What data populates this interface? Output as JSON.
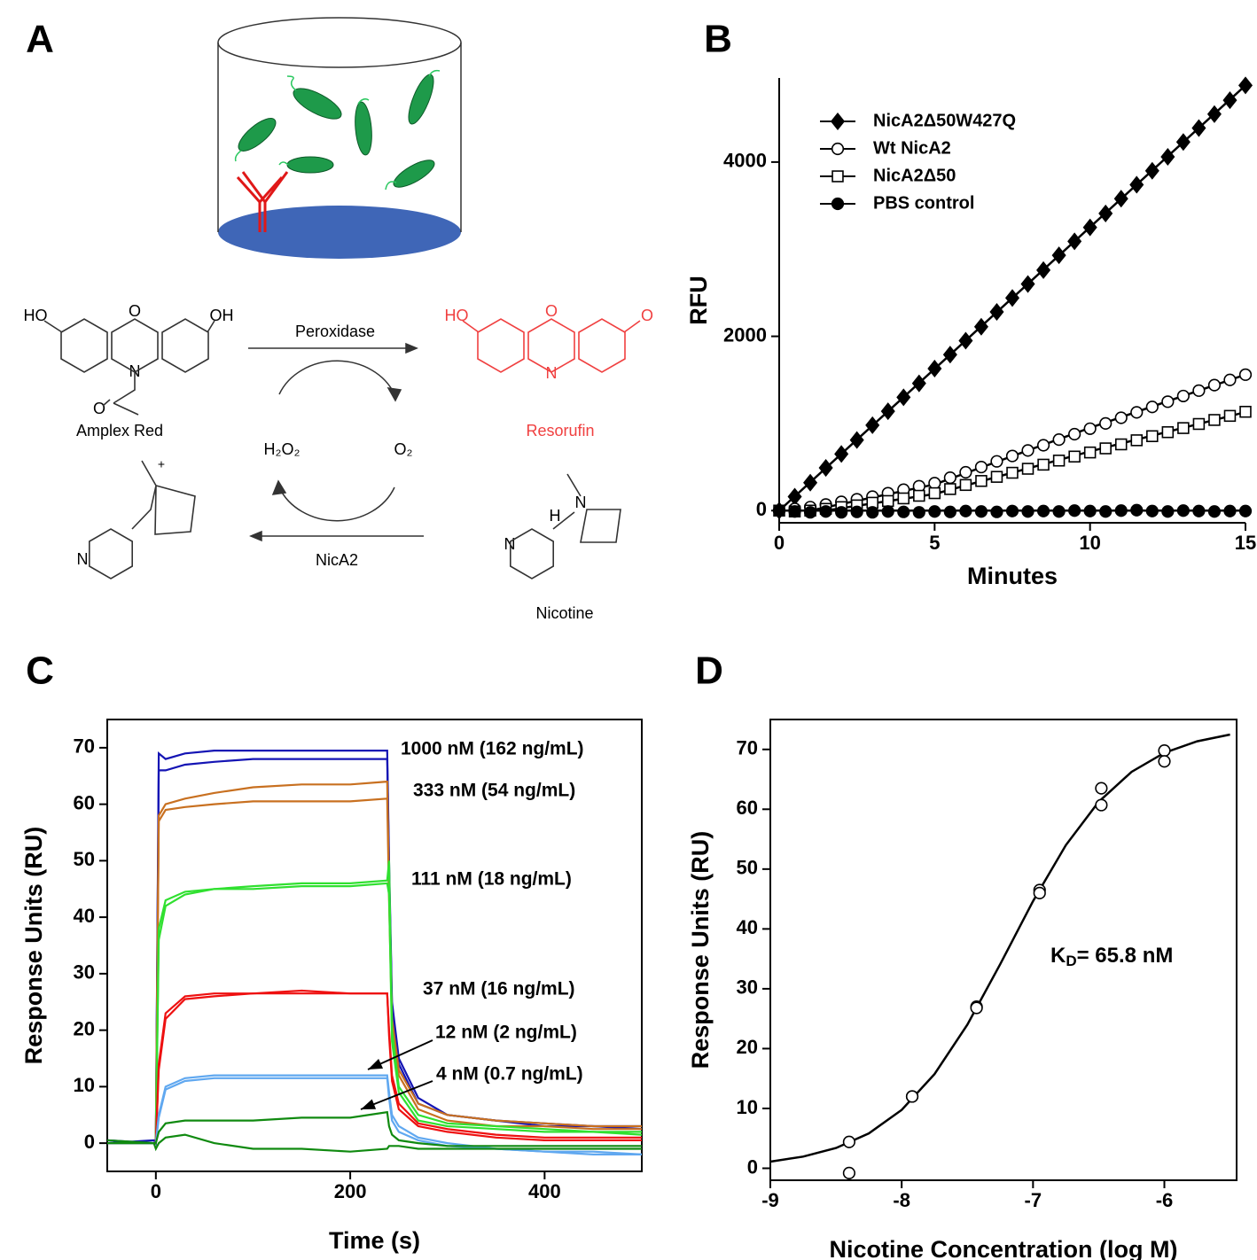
{
  "diagram": {
    "label": "A",
    "reagents": {
      "amplex_red": "Amplex Red",
      "resorufin": "Resorufin",
      "nicotine": "Nicotine"
    },
    "enzymes": {
      "peroxidase": "Peroxidase",
      "nica2": "NicA2"
    },
    "cofactors": {
      "h2o2": "H₂O₂",
      "o2": "O₂"
    },
    "atoms": [
      "HO",
      "O",
      "OH",
      "N",
      "O",
      "HO",
      "O",
      "O",
      "N",
      "N",
      "+",
      "N",
      "H",
      "N"
    ]
  },
  "chart_data": [
    {
      "type": "scatter",
      "label": "B",
      "frame": "axes",
      "xlabel": "Minutes",
      "ylabel": "RFU",
      "xlim": [
        0,
        15
      ],
      "ylim": [
        -140,
        4965
      ],
      "xticks": [
        0,
        5,
        10,
        15
      ],
      "yticks": [
        0,
        2000,
        4000
      ],
      "legend": "upper left",
      "x": [
        0,
        0.5,
        1,
        1.5,
        2,
        2.5,
        3,
        3.5,
        4,
        4.5,
        5,
        5.5,
        6,
        6.5,
        7,
        7.5,
        8,
        8.5,
        9,
        9.5,
        10,
        10.5,
        11,
        11.5,
        12,
        12.5,
        13,
        13.5,
        14,
        14.5,
        15
      ],
      "series": [
        {
          "name": "NicA2Δ50W427Q",
          "color": "#000000",
          "marker": "filled-diamond",
          "values": [
            0,
            160,
            320,
            490,
            650,
            810,
            980,
            1140,
            1300,
            1460,
            1630,
            1790,
            1950,
            2110,
            2280,
            2440,
            2600,
            2760,
            2930,
            3090,
            3250,
            3410,
            3580,
            3740,
            3900,
            4060,
            4230,
            4390,
            4550,
            4710,
            4880
          ],
          "fit": {
            "x": [
              0,
              15
            ],
            "values": [
              0,
              4880
            ]
          }
        },
        {
          "name": "Wt NicA2",
          "color": "#000000",
          "marker": "open-circle",
          "values": [
            0,
            20,
            40,
            70,
            100,
            130,
            160,
            200,
            240,
            280,
            315,
            377,
            440,
            500,
            565,
            627,
            690,
            750,
            815,
            877,
            940,
            1000,
            1065,
            1127,
            1190,
            1250,
            1315,
            1377,
            1440,
            1500,
            1560
          ],
          "fit": {
            "x": [
              1,
              5,
              10,
              15
            ],
            "values": [
              0,
              300,
              950,
              1560
            ]
          }
        },
        {
          "name": "NicA2Δ50",
          "color": "#000000",
          "marker": "open-square",
          "values": [
            0,
            -10,
            0,
            20,
            40,
            60,
            90,
            110,
            140,
            170,
            200,
            247,
            294,
            340,
            387,
            434,
            480,
            527,
            574,
            620,
            667,
            714,
            760,
            807,
            854,
            900,
            947,
            994,
            1040,
            1087,
            1134
          ],
          "fit": {
            "x": [
              1.5,
              5,
              10,
              15
            ],
            "values": [
              0,
              190,
              680,
              1130
            ]
          }
        },
        {
          "name": "PBS control",
          "color": "#000000",
          "marker": "filled-circle",
          "values": [
            0,
            -10,
            -20,
            -10,
            -20,
            -15,
            -20,
            -10,
            -15,
            -20,
            -10,
            -15,
            -5,
            -10,
            -15,
            -5,
            -10,
            -5,
            -10,
            0,
            -5,
            -10,
            0,
            5,
            -5,
            -10,
            0,
            -5,
            -10,
            -5,
            -5
          ],
          "fit": {
            "x": [
              0,
              15
            ],
            "values": [
              0,
              0
            ]
          }
        }
      ]
    },
    {
      "type": "line",
      "label": "C",
      "frame": "box",
      "xlabel": "Time (s)",
      "ylabel": "Response Units (RU)",
      "xlim": [
        -50,
        500
      ],
      "ylim": [
        -5,
        75
      ],
      "xticks": [
        0,
        200,
        400
      ],
      "yticks": [
        0,
        10,
        20,
        30,
        40,
        50,
        60,
        70
      ],
      "x": [
        -50,
        -2,
        0,
        3,
        10,
        30,
        60,
        100,
        150,
        200,
        238,
        240,
        243,
        250,
        270,
        300,
        350,
        400,
        450,
        500
      ],
      "series": [
        {
          "name": "1000 nM (162 ng/mL)",
          "color": "#1414b4",
          "replicates": [
            [
              0.5,
              0,
              0,
              69,
              68,
              69,
              69.5,
              69.5,
              69.5,
              69.5,
              69.5,
              50,
              25,
              15,
              8,
              5,
              4,
              3.5,
              3,
              3
            ],
            [
              0,
              0.5,
              0,
              66,
              66,
              67,
              67.5,
              68,
              68,
              68,
              68,
              48,
              24,
              14,
              7,
              5,
              4,
              3,
              3,
              2.5
            ]
          ]
        },
        {
          "name": "333 nM (54 ng/mL)",
          "color": "#c87020",
          "replicates": [
            [
              0,
              0,
              0,
              58,
              60,
              61,
              62,
              63,
              63.5,
              63.5,
              64,
              45,
              22,
              13,
              7,
              5,
              4,
              3.5,
              3,
              3
            ],
            [
              0,
              0,
              0,
              57,
              59,
              59.5,
              60,
              60.5,
              60.5,
              60.5,
              61,
              43,
              21,
              12,
              6,
              4,
              3,
              3,
              2.5,
              2.5
            ]
          ]
        },
        {
          "name": "111 nM (18 ng/mL)",
          "color": "#30e030",
          "replicates": [
            [
              0,
              0,
              0,
              38,
              43,
              44.5,
              45,
              45.5,
              46,
              46,
              46.5,
              50,
              20,
              10,
              5,
              3.5,
              3,
              2.5,
              2,
              2
            ],
            [
              0,
              0,
              0,
              36,
              42,
              44,
              45,
              45,
              45.5,
              45.5,
              46,
              44,
              18,
              9,
              4,
              3,
              2.5,
              2,
              2,
              1.5
            ]
          ]
        },
        {
          "name": "37 nM (16 ng/mL)",
          "color": "#ee1010",
          "replicates": [
            [
              0,
              0,
              0,
              14,
              23,
              26,
              26.5,
              26.5,
              27,
              26.5,
              26.5,
              20,
              12,
              7,
              3.5,
              2.5,
              1.5,
              1,
              1,
              1
            ],
            [
              0,
              0,
              0,
              13,
              22,
              25.5,
              26,
              26.5,
              26.5,
              26.5,
              26.5,
              19,
              11,
              6,
              3,
              2,
              1,
              0.5,
              0.5,
              0.5
            ]
          ]
        },
        {
          "name": "12 nM (2 ng/mL)",
          "color": "#60a8f0",
          "replicates": [
            [
              0,
              0,
              0,
              5,
              10,
              11.5,
              12,
              12,
              12,
              12,
              12,
              9,
              5,
              3,
              1,
              0,
              -1,
              -1.5,
              -1.5,
              -2
            ],
            [
              0,
              0,
              0,
              4.5,
              9.5,
              11,
              11.5,
              11.5,
              11.5,
              11.5,
              11.5,
              8,
              4,
              2,
              0.5,
              -0.5,
              -1,
              -1.5,
              -2,
              -2
            ]
          ]
        },
        {
          "name": "4 nM (0.7 ng/mL)",
          "color": "#108a10",
          "replicates": [
            [
              0,
              0,
              0,
              2,
              3.5,
              4,
              4,
              4,
              4.5,
              4.5,
              5.5,
              3,
              1.5,
              0.5,
              0,
              -0.5,
              -0.5,
              -0.5,
              -0.5,
              -0.5
            ],
            [
              0.5,
              0,
              -1,
              0,
              1,
              1.5,
              0,
              -1,
              -1,
              -1.5,
              -1,
              -0.5,
              -0.5,
              -0.5,
              -1,
              -1,
              -1,
              -1,
              -1,
              -1
            ]
          ]
        }
      ]
    },
    {
      "type": "scatter",
      "label": "D",
      "frame": "box",
      "xlabel": "Nicotine Concentration (log M)",
      "ylabel": "Response Units (RU)",
      "xlim": [
        -9,
        -5.45
      ],
      "ylim": [
        -2,
        75
      ],
      "xticks": [
        -9,
        -8,
        -7,
        -6
      ],
      "yticks": [
        0,
        10,
        20,
        30,
        40,
        50,
        60,
        70
      ],
      "annotation": {
        "main": "K",
        "sub": "D",
        "rest": "= 65.8 nM"
      },
      "x": [
        -8.4,
        -8.4,
        -7.92,
        -7.92,
        -7.43,
        -7.43,
        -6.95,
        -6.95,
        -6.48,
        -6.48,
        -6,
        -6
      ],
      "series": [
        {
          "color": "#000000",
          "marker": "open-circle",
          "values": [
            4.4,
            -0.8,
            12,
            12,
            27,
            26.8,
            46.5,
            46,
            63.5,
            60.7,
            69.8,
            68
          ],
          "fit": {
            "x": [
              -9,
              -8.75,
              -8.5,
              -8.25,
              -8,
              -7.75,
              -7.5,
              -7.25,
              -7,
              -6.75,
              -6.5,
              -6.25,
              -6,
              -5.75,
              -5.5
            ],
            "values": [
              1.11,
              1.95,
              3.39,
              5.83,
              9.76,
              15.74,
              24.02,
              34.1,
              44.63,
              54.01,
              61.25,
              66.25,
              69.43,
              71.36,
              72.49
            ]
          }
        }
      ]
    }
  ]
}
